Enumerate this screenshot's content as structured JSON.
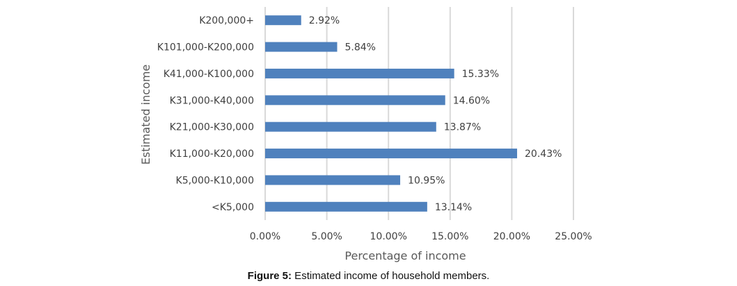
{
  "chart_data": {
    "type": "bar",
    "orientation": "horizontal",
    "categories": [
      "K200,000+",
      "K101,000-K200,000",
      "K41,000-K100,000",
      "K31,000-K40,000",
      "K21,000-K30,000",
      "K11,000-K20,000",
      "K5,000-K10,000",
      "<K5,000"
    ],
    "values": [
      2.92,
      5.84,
      15.33,
      14.6,
      13.87,
      20.43,
      10.95,
      13.14
    ],
    "data_labels": [
      "2.92%",
      "5.84%",
      "15.33%",
      "14.60%",
      "13.87%",
      "20.43%",
      "10.95%",
      "13.14%"
    ],
    "xlabel": "Percentage of income",
    "ylabel": "Estimated income",
    "xlim": [
      0,
      25
    ],
    "xticks": [
      0,
      5,
      10,
      15,
      20,
      25
    ],
    "xtick_labels": [
      "0.00%",
      "5.00%",
      "10.00%",
      "15.00%",
      "20.00%",
      "25.00%"
    ],
    "grid": "vertical",
    "bar_color": "#4f81bd",
    "grid_color": "#d9d9d9"
  },
  "caption": {
    "label": "Figure 5:",
    "text": " Estimated income of household members."
  }
}
